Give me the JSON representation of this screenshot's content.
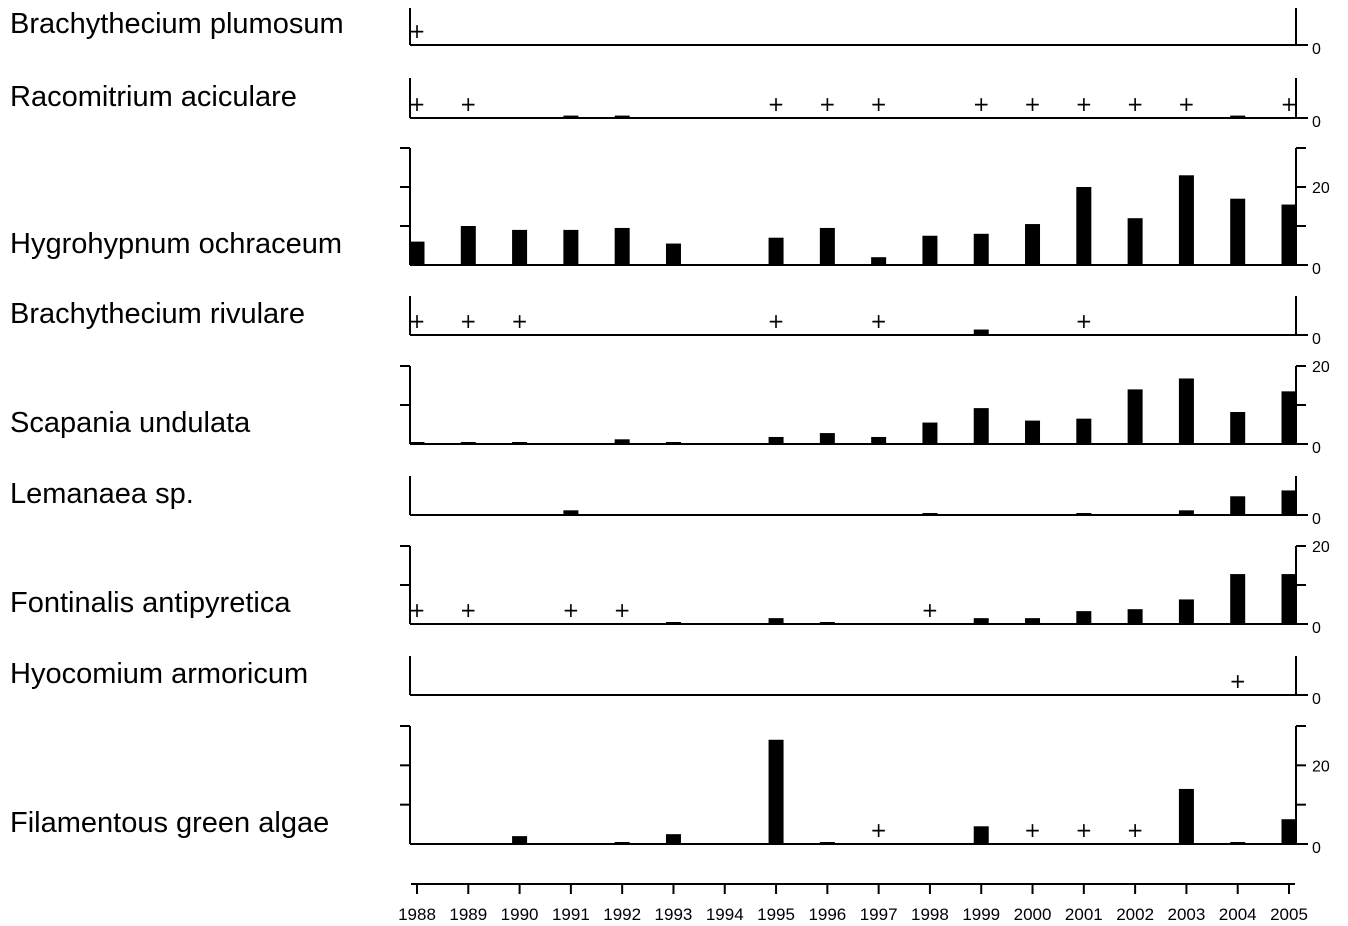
{
  "chart_data": {
    "type": "bar",
    "title": "",
    "xlabel": "",
    "ylabel": "",
    "x": [
      1988,
      1989,
      1990,
      1991,
      1992,
      1993,
      1994,
      1995,
      1996,
      1997,
      1998,
      1999,
      2000,
      2001,
      2002,
      2003,
      2004,
      2005
    ],
    "presence_marker": "+",
    "series": [
      {
        "name": "Brachythecium plumosum",
        "ylim": [
          0,
          5
        ],
        "y_tick_labels": [
          "0"
        ],
        "values": [
          0,
          0,
          0,
          0,
          0,
          0,
          0,
          0,
          0,
          0,
          0,
          0,
          0,
          0,
          0,
          0,
          0,
          0
        ],
        "present_only_years": [
          1988
        ]
      },
      {
        "name": "Racomitrium aciculare",
        "ylim": [
          0,
          5
        ],
        "y_tick_labels": [
          "0"
        ],
        "values": [
          0,
          0,
          0,
          0.3,
          0.3,
          0,
          0,
          0,
          0,
          0,
          0,
          0,
          0,
          0,
          0,
          0,
          0.3,
          0
        ],
        "present_only_years": [
          1988,
          1989,
          1995,
          1996,
          1997,
          1999,
          2000,
          2001,
          2002,
          2003,
          2005
        ]
      },
      {
        "name": "Hygrohypnum ochraceum",
        "ylim": [
          0,
          30
        ],
        "y_tick_labels": [
          "0",
          "20"
        ],
        "values": [
          6,
          10,
          9,
          9,
          9.5,
          5.5,
          0,
          7,
          9.5,
          2,
          7.5,
          8,
          10.5,
          20,
          12,
          23,
          17,
          15.5
        ],
        "present_only_years": []
      },
      {
        "name": "Brachythecium rivulare",
        "ylim": [
          0,
          5
        ],
        "y_tick_labels": [
          "0"
        ],
        "values": [
          0,
          0,
          0,
          0,
          0,
          0,
          0,
          0,
          0,
          0,
          0,
          0.7,
          0,
          0,
          0,
          0,
          0,
          0
        ],
        "present_only_years": [
          1988,
          1989,
          1990,
          1995,
          1997,
          2001
        ]
      },
      {
        "name": "Scapania undulata",
        "ylim": [
          0,
          20
        ],
        "y_tick_labels": [
          "0",
          "20"
        ],
        "values": [
          0.5,
          0.5,
          0.5,
          0,
          1.2,
          0.5,
          0,
          1.8,
          2.8,
          1.8,
          5.5,
          9.2,
          6,
          6.5,
          14,
          16.8,
          8.2,
          13.5
        ],
        "present_only_years": []
      },
      {
        "name": "Lemanaea sp.",
        "ylim": [
          0,
          10
        ],
        "y_tick_labels": [
          "0"
        ],
        "values": [
          0,
          0,
          0,
          1.2,
          0,
          0,
          0,
          0,
          0,
          0,
          0.5,
          0,
          0,
          0.5,
          0,
          1.2,
          4.8,
          6.3
        ],
        "present_only_years": []
      },
      {
        "name": "Fontinalis antipyretica",
        "ylim": [
          0,
          20
        ],
        "y_tick_labels": [
          "0",
          "20"
        ],
        "values": [
          0,
          0,
          0,
          0,
          0,
          0.5,
          0,
          1.5,
          0.5,
          0,
          0,
          1.5,
          1.5,
          3.3,
          3.8,
          6.3,
          12.8,
          12.8
        ],
        "present_only_years": [
          1988,
          1989,
          1991,
          1992,
          1998
        ]
      },
      {
        "name": "Hyocomium armoricum",
        "ylim": [
          0,
          5
        ],
        "y_tick_labels": [
          "0"
        ],
        "values": [
          0,
          0,
          0,
          0,
          0,
          0,
          0,
          0,
          0,
          0,
          0,
          0,
          0,
          0,
          0,
          0,
          0,
          0
        ],
        "present_only_years": [
          2004
        ]
      },
      {
        "name": "Filamentous green algae",
        "ylim": [
          0,
          30
        ],
        "y_tick_labels": [
          "0",
          "20"
        ],
        "values": [
          0,
          0,
          2,
          0,
          0.5,
          2.5,
          0,
          26.5,
          0.5,
          0,
          0,
          4.5,
          0,
          0,
          0,
          14,
          0.5,
          6.3
        ],
        "present_only_years": [
          1997,
          2000,
          2001,
          2002
        ]
      }
    ]
  }
}
